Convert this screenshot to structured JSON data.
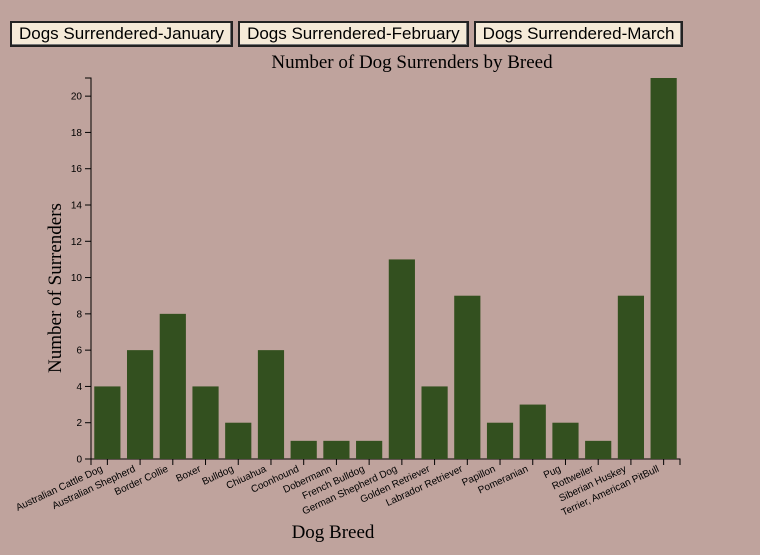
{
  "buttons": [
    {
      "label": "Dogs Surrendered-January"
    },
    {
      "label": "Dogs Surrendered-February"
    },
    {
      "label": "Dogs Surrendered-March"
    }
  ],
  "chart_data": {
    "type": "bar",
    "title": "Number of Dog Surrenders by Breed",
    "xlabel": "Dog Breed",
    "ylabel": "Number of Surrenders",
    "ylim": [
      0,
      21
    ],
    "yticks": [
      0,
      2,
      4,
      6,
      8,
      10,
      12,
      14,
      16,
      18,
      20
    ],
    "categories": [
      "Australian Cattle Dog",
      "Australian Shepherd",
      "Border Collie",
      "Boxer",
      "Bulldog",
      "Chiuahua",
      "Coonhound",
      "Dobermann",
      "French Bulldog",
      "German Shepherd Dog",
      "Golden Retriever",
      "Labrador Retriever",
      "Papillon",
      "Pomeranian",
      "Pug",
      "Rottweiler",
      "Siberian Huskey",
      "Terrier, American PitBull"
    ],
    "values": [
      4,
      6,
      8,
      4,
      2,
      6,
      1,
      1,
      1,
      11,
      4,
      9,
      2,
      3,
      2,
      1,
      9,
      21
    ],
    "bar_color": "#33501f",
    "grid": false
  }
}
